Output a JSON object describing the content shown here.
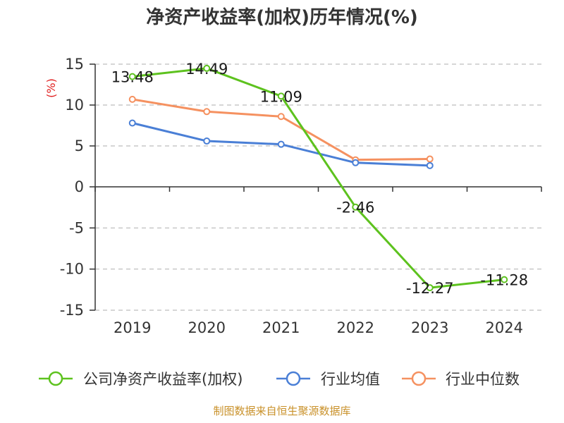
{
  "chart_data": {
    "type": "line",
    "title": "净资产收益率(加权)历年情况(%)",
    "y_unit": "(%)",
    "categories": [
      "2019",
      "2020",
      "2021",
      "2022",
      "2023",
      "2024"
    ],
    "ylim": [
      -15,
      15
    ],
    "yticks": [
      "15",
      "10",
      "5",
      "0",
      "-5",
      "-10",
      "-15"
    ],
    "ytick_values": [
      15,
      10,
      5,
      0,
      -5,
      -10,
      -15
    ],
    "grid": "horizontal dashed",
    "legend_position": "bottom",
    "series": [
      {
        "name": "公司净资产收益率(加权)",
        "color": "#5dc21e",
        "values": [
          13.48,
          14.49,
          11.09,
          -2.46,
          -12.27,
          -11.28
        ],
        "labels": [
          "13.48",
          "14.49",
          "11.09",
          "-2.46",
          "-12.27",
          "-11.28"
        ]
      },
      {
        "name": "行业均值",
        "color": "#4a7fd6",
        "values": [
          7.8,
          5.6,
          5.2,
          2.95,
          2.6,
          null
        ]
      },
      {
        "name": "行业中位数",
        "color": "#f59160",
        "values": [
          10.7,
          9.2,
          8.6,
          3.3,
          3.4,
          null
        ]
      }
    ]
  },
  "footer": {
    "source": "制图数据来自恒生聚源数据库"
  }
}
